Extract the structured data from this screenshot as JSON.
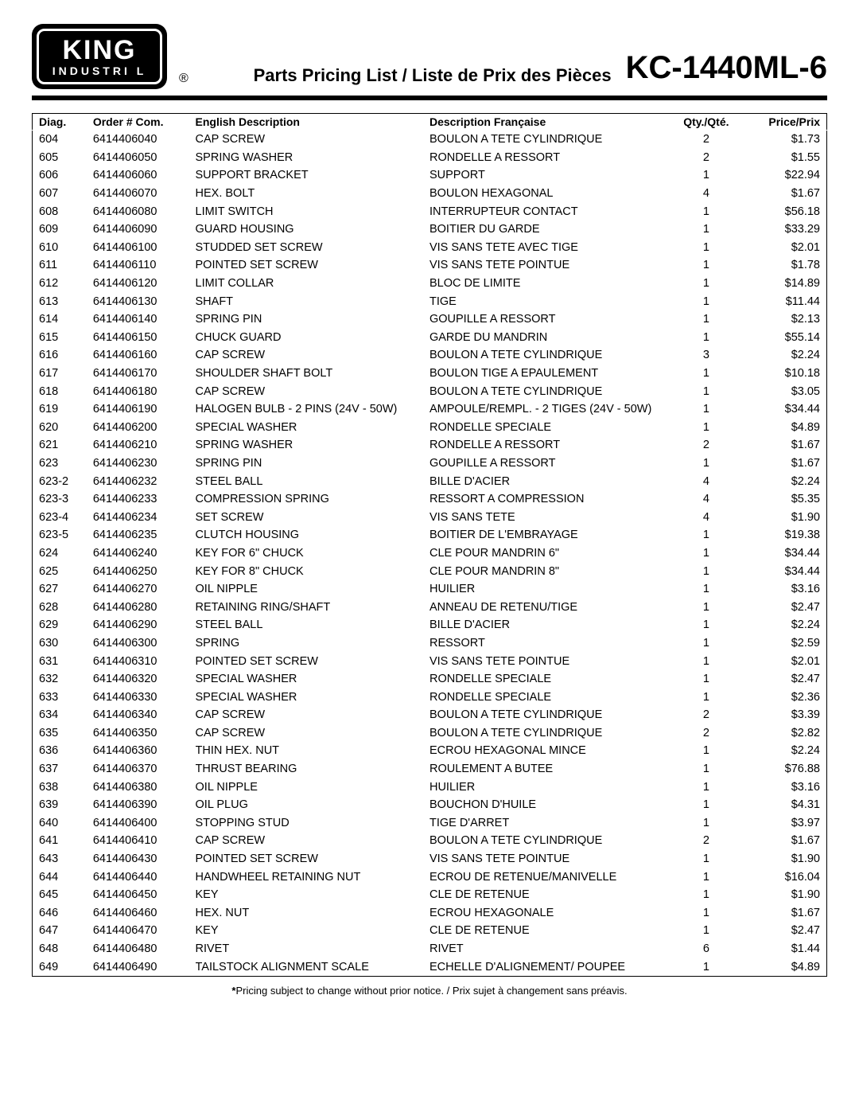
{
  "header": {
    "logo_top": "KING",
    "logo_bottom": "INDUSTRI   L",
    "registered": "®",
    "subtitle": "Parts Pricing List / Liste de Prix des Pièces",
    "model": "KC-1440ML-6"
  },
  "table": {
    "columns": {
      "diag": "Diag.",
      "order": "Order # Com.",
      "en": "English Description",
      "fr": "Description Française",
      "qty": "Qty./Qté.",
      "price": "Price/Prix"
    },
    "rows": [
      {
        "diag": "604",
        "order": "6414406040",
        "en": "CAP SCREW",
        "fr": "BOULON A TETE CYLINDRIQUE",
        "qty": "2",
        "price": "$1.73"
      },
      {
        "diag": "605",
        "order": "6414406050",
        "en": "SPRING WASHER",
        "fr": "RONDELLE A RESSORT",
        "qty": "2",
        "price": "$1.55"
      },
      {
        "diag": "606",
        "order": "6414406060",
        "en": "SUPPORT BRACKET",
        "fr": "SUPPORT",
        "qty": "1",
        "price": "$22.94"
      },
      {
        "diag": "607",
        "order": "6414406070",
        "en": "HEX. BOLT",
        "fr": "BOULON HEXAGONAL",
        "qty": "4",
        "price": "$1.67"
      },
      {
        "diag": "608",
        "order": "6414406080",
        "en": "LIMIT SWITCH",
        "fr": "INTERRUPTEUR CONTACT",
        "qty": "1",
        "price": "$56.18"
      },
      {
        "diag": "609",
        "order": "6414406090",
        "en": "GUARD HOUSING",
        "fr": "BOITIER DU GARDE",
        "qty": "1",
        "price": "$33.29"
      },
      {
        "diag": "610",
        "order": "6414406100",
        "en": "STUDDED SET SCREW",
        "fr": "VIS SANS TETE AVEC TIGE",
        "qty": "1",
        "price": "$2.01"
      },
      {
        "diag": "611",
        "order": "6414406110",
        "en": "POINTED SET SCREW",
        "fr": "VIS SANS TETE POINTUE",
        "qty": "1",
        "price": "$1.78"
      },
      {
        "diag": "612",
        "order": "6414406120",
        "en": "LIMIT COLLAR",
        "fr": "BLOC DE LIMITE",
        "qty": "1",
        "price": "$14.89"
      },
      {
        "diag": "613",
        "order": "6414406130",
        "en": "SHAFT",
        "fr": "TIGE",
        "qty": "1",
        "price": "$11.44"
      },
      {
        "diag": "614",
        "order": "6414406140",
        "en": "SPRING PIN",
        "fr": "GOUPILLE A RESSORT",
        "qty": "1",
        "price": "$2.13"
      },
      {
        "diag": "615",
        "order": "6414406150",
        "en": "CHUCK GUARD",
        "fr": "GARDE DU MANDRIN",
        "qty": "1",
        "price": "$55.14"
      },
      {
        "diag": "616",
        "order": "6414406160",
        "en": "CAP SCREW",
        "fr": "BOULON A TETE CYLINDRIQUE",
        "qty": "3",
        "price": "$2.24"
      },
      {
        "diag": "617",
        "order": "6414406170",
        "en": "SHOULDER SHAFT BOLT",
        "fr": "BOULON TIGE A EPAULEMENT",
        "qty": "1",
        "price": "$10.18"
      },
      {
        "diag": "618",
        "order": "6414406180",
        "en": "CAP SCREW",
        "fr": "BOULON A TETE CYLINDRIQUE",
        "qty": "1",
        "price": "$3.05"
      },
      {
        "diag": "619",
        "order": "6414406190",
        "en": "HALOGEN BULB - 2 PINS (24V - 50W)",
        "fr": "AMPOULE/REMPL. - 2 TIGES (24V - 50W)",
        "qty": "1",
        "price": "$34.44"
      },
      {
        "diag": "620",
        "order": "6414406200",
        "en": "SPECIAL WASHER",
        "fr": "RONDELLE SPECIALE",
        "qty": "1",
        "price": "$4.89"
      },
      {
        "diag": "621",
        "order": "6414406210",
        "en": "SPRING WASHER",
        "fr": "RONDELLE A RESSORT",
        "qty": "2",
        "price": "$1.67"
      },
      {
        "diag": "623",
        "order": "6414406230",
        "en": "SPRING PIN",
        "fr": "GOUPILLE A RESSORT",
        "qty": "1",
        "price": "$1.67"
      },
      {
        "diag": "623-2",
        "order": "6414406232",
        "en": "STEEL BALL",
        "fr": "BILLE D'ACIER",
        "qty": "4",
        "price": "$2.24"
      },
      {
        "diag": "623-3",
        "order": "6414406233",
        "en": "COMPRESSION SPRING",
        "fr": "RESSORT A COMPRESSION",
        "qty": "4",
        "price": "$5.35"
      },
      {
        "diag": "623-4",
        "order": "6414406234",
        "en": "SET SCREW",
        "fr": "VIS SANS TETE",
        "qty": "4",
        "price": "$1.90"
      },
      {
        "diag": "623-5",
        "order": "6414406235",
        "en": "CLUTCH HOUSING",
        "fr": "BOITIER DE L'EMBRAYAGE",
        "qty": "1",
        "price": "$19.38"
      },
      {
        "diag": "624",
        "order": "6414406240",
        "en": "KEY FOR 6\" CHUCK",
        "fr": "CLE POUR MANDRIN 6\"",
        "qty": "1",
        "price": "$34.44"
      },
      {
        "diag": "625",
        "order": "6414406250",
        "en": "KEY FOR 8\" CHUCK",
        "fr": "CLE POUR MANDRIN 8\"",
        "qty": "1",
        "price": "$34.44"
      },
      {
        "diag": "627",
        "order": "6414406270",
        "en": "OIL NIPPLE",
        "fr": "HUILIER",
        "qty": "1",
        "price": "$3.16"
      },
      {
        "diag": "628",
        "order": "6414406280",
        "en": "RETAINING RING/SHAFT",
        "fr": "ANNEAU DE RETENU/TIGE",
        "qty": "1",
        "price": "$2.47"
      },
      {
        "diag": "629",
        "order": "6414406290",
        "en": "STEEL BALL",
        "fr": "BILLE D'ACIER",
        "qty": "1",
        "price": "$2.24"
      },
      {
        "diag": "630",
        "order": "6414406300",
        "en": "SPRING",
        "fr": "RESSORT",
        "qty": "1",
        "price": "$2.59"
      },
      {
        "diag": "631",
        "order": "6414406310",
        "en": "POINTED SET SCREW",
        "fr": "VIS SANS TETE POINTUE",
        "qty": "1",
        "price": "$2.01"
      },
      {
        "diag": "632",
        "order": "6414406320",
        "en": "SPECIAL WASHER",
        "fr": "RONDELLE SPECIALE",
        "qty": "1",
        "price": "$2.47"
      },
      {
        "diag": "633",
        "order": "6414406330",
        "en": "SPECIAL WASHER",
        "fr": "RONDELLE SPECIALE",
        "qty": "1",
        "price": "$2.36"
      },
      {
        "diag": "634",
        "order": "6414406340",
        "en": "CAP SCREW",
        "fr": "BOULON A TETE CYLINDRIQUE",
        "qty": "2",
        "price": "$3.39"
      },
      {
        "diag": "635",
        "order": "6414406350",
        "en": "CAP SCREW",
        "fr": "BOULON A TETE CYLINDRIQUE",
        "qty": "2",
        "price": "$2.82"
      },
      {
        "diag": "636",
        "order": "6414406360",
        "en": "THIN HEX. NUT",
        "fr": "ECROU HEXAGONAL MINCE",
        "qty": "1",
        "price": "$2.24"
      },
      {
        "diag": "637",
        "order": "6414406370",
        "en": "THRUST BEARING",
        "fr": "ROULEMENT A BUTEE",
        "qty": "1",
        "price": "$76.88"
      },
      {
        "diag": "638",
        "order": "6414406380",
        "en": "OIL NIPPLE",
        "fr": "HUILIER",
        "qty": "1",
        "price": "$3.16"
      },
      {
        "diag": "639",
        "order": "6414406390",
        "en": "OIL PLUG",
        "fr": "BOUCHON D'HUILE",
        "qty": "1",
        "price": "$4.31"
      },
      {
        "diag": "640",
        "order": "6414406400",
        "en": "STOPPING STUD",
        "fr": "TIGE D'ARRET",
        "qty": "1",
        "price": "$3.97"
      },
      {
        "diag": "641",
        "order": "6414406410",
        "en": "CAP SCREW",
        "fr": "BOULON A TETE CYLINDRIQUE",
        "qty": "2",
        "price": "$1.67"
      },
      {
        "diag": "643",
        "order": "6414406430",
        "en": "POINTED SET SCREW",
        "fr": "VIS SANS TETE POINTUE",
        "qty": "1",
        "price": "$1.90"
      },
      {
        "diag": "644",
        "order": "6414406440",
        "en": "HANDWHEEL RETAINING NUT",
        "fr": "ECROU DE RETENUE/MANIVELLE",
        "qty": "1",
        "price": "$16.04"
      },
      {
        "diag": "645",
        "order": "6414406450",
        "en": "KEY",
        "fr": "CLE DE RETENUE",
        "qty": "1",
        "price": "$1.90"
      },
      {
        "diag": "646",
        "order": "6414406460",
        "en": "HEX. NUT",
        "fr": "ECROU HEXAGONALE",
        "qty": "1",
        "price": "$1.67"
      },
      {
        "diag": "647",
        "order": "6414406470",
        "en": "KEY",
        "fr": "CLE DE RETENUE",
        "qty": "1",
        "price": "$2.47"
      },
      {
        "diag": "648",
        "order": "6414406480",
        "en": "RIVET",
        "fr": "RIVET",
        "qty": "6",
        "price": "$1.44"
      },
      {
        "diag": "649",
        "order": "6414406490",
        "en": "TAILSTOCK ALIGNMENT SCALE",
        "fr": "ECHELLE D'ALIGNEMENT/ POUPEE",
        "qty": "1",
        "price": "$4.89"
      }
    ]
  },
  "footnote": "*Pricing subject to change without prior notice. / Prix sujet à changement sans préavis."
}
